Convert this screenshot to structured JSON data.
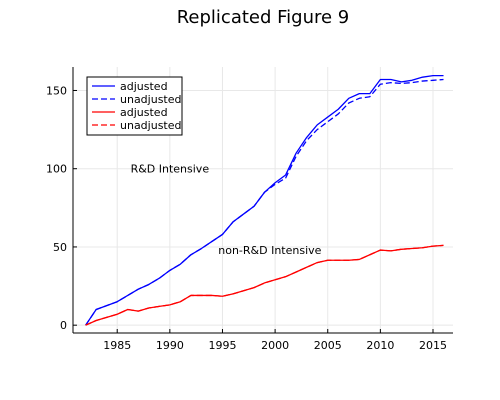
{
  "chart_data": {
    "type": "line",
    "title": "Replicated Figure 9",
    "xlabel": "",
    "ylabel": "",
    "xlim": [
      1980.8,
      2016.9
    ],
    "ylim": [
      -5,
      165
    ],
    "xticks": [
      1985,
      1990,
      1995,
      2000,
      2005,
      2010,
      2015
    ],
    "yticks": [
      0,
      50,
      100,
      150
    ],
    "grid": true,
    "legend_position": "top-left",
    "annotations": [
      {
        "text": "R&D Intensive",
        "x": 1990,
        "y": 100
      },
      {
        "text": "non-R&D Intensive",
        "x": 1999.5,
        "y": 48
      }
    ],
    "series": [
      {
        "name": "adjusted",
        "color": "#0000ff",
        "dash": "solid",
        "x": [
          1982,
          1983,
          1984,
          1985,
          1986,
          1987,
          1988,
          1989,
          1990,
          1991,
          1992,
          1993,
          1994,
          1995,
          1996,
          1997,
          1998,
          1999,
          2000,
          2001,
          2002,
          2003,
          2004,
          2005,
          2006,
          2007,
          2008,
          2009,
          2010,
          2011,
          2012,
          2013,
          2014,
          2015,
          2016
        ],
        "values": [
          0,
          10,
          12.5,
          15,
          19,
          23,
          26,
          30,
          35,
          39,
          45,
          49,
          53.5,
          58,
          66,
          71,
          76,
          85,
          91,
          96,
          110,
          120,
          128,
          133,
          138,
          145,
          148,
          148,
          157,
          157,
          155.5,
          156.5,
          158.5,
          159.5,
          159.5
        ]
      },
      {
        "name": "unadjusted",
        "color": "#0000ff",
        "dash": "dashed",
        "x": [
          1982,
          1983,
          1984,
          1985,
          1986,
          1987,
          1988,
          1989,
          1990,
          1991,
          1992,
          1993,
          1994,
          1995,
          1996,
          1997,
          1998,
          1999,
          2000,
          2001,
          2002,
          2003,
          2004,
          2005,
          2006,
          2007,
          2008,
          2009,
          2010,
          2011,
          2012,
          2013,
          2014,
          2015,
          2016
        ],
        "values": [
          0,
          10,
          12.5,
          15,
          19,
          23,
          26,
          30,
          35,
          39,
          45,
          49,
          53.5,
          58,
          66,
          71,
          76,
          85,
          90,
          94,
          108,
          118,
          125,
          130,
          135,
          142,
          145,
          146,
          154,
          155,
          154.5,
          155,
          156,
          156.5,
          157
        ]
      },
      {
        "name": "adjusted",
        "color": "#ff0000",
        "dash": "solid",
        "x": [
          1982,
          1983,
          1984,
          1985,
          1986,
          1987,
          1988,
          1989,
          1990,
          1991,
          1992,
          1993,
          1994,
          1995,
          1996,
          1997,
          1998,
          1999,
          2000,
          2001,
          2002,
          2003,
          2004,
          2005,
          2006,
          2007,
          2008,
          2009,
          2010,
          2011,
          2012,
          2013,
          2014,
          2015,
          2016
        ],
        "values": [
          0,
          3,
          5,
          7,
          10,
          9,
          11,
          12,
          13,
          15,
          19,
          19,
          19,
          18.5,
          20,
          22,
          24,
          27,
          29,
          31,
          34,
          37,
          40,
          41.5,
          41.5,
          41.5,
          42,
          45,
          48,
          47.5,
          48.5,
          49,
          49.5,
          50.5,
          51
        ]
      },
      {
        "name": "unadjusted",
        "color": "#ff0000",
        "dash": "dashed",
        "x": [
          1982,
          1983,
          1984,
          1985,
          1986,
          1987,
          1988,
          1989,
          1990,
          1991,
          1992,
          1993,
          1994,
          1995,
          1996,
          1997,
          1998,
          1999,
          2000,
          2001,
          2002,
          2003,
          2004,
          2005,
          2006,
          2007,
          2008,
          2009,
          2010,
          2011,
          2012,
          2013,
          2014,
          2015,
          2016
        ],
        "values": [
          0,
          3,
          5,
          7,
          10,
          9,
          11,
          12,
          13,
          15,
          19,
          19,
          19,
          18.5,
          20,
          22,
          24,
          27,
          29,
          31,
          34,
          37,
          40,
          41.5,
          41.5,
          41.5,
          42,
          45,
          48,
          47.5,
          48.5,
          49,
          49.5,
          50.5,
          51
        ]
      }
    ]
  }
}
